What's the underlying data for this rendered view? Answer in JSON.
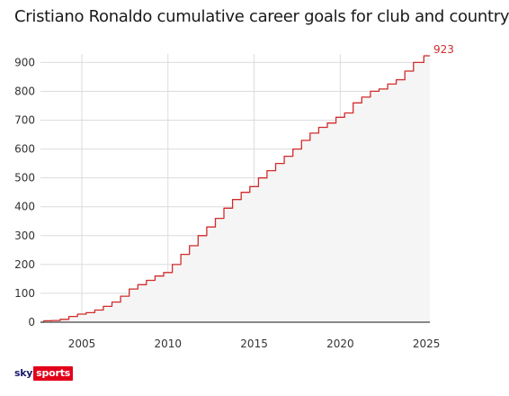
{
  "chart_data": {
    "type": "area",
    "title": "Cristiano Ronaldo cumulative career goals for club and country",
    "xlabel": "",
    "ylabel": "",
    "xlim": [
      2002.6,
      2025.2
    ],
    "ylim": [
      0,
      923
    ],
    "x_ticks": [
      2005,
      2010,
      2015,
      2020,
      2025
    ],
    "y_ticks": [
      0,
      100,
      200,
      300,
      400,
      500,
      600,
      700,
      800,
      900
    ],
    "grid": true,
    "end_label": "923",
    "line_color": "#d12b2b",
    "fill_color": "#f5f5f5",
    "grid_color": "#dcdcdc",
    "series": [
      {
        "x": [
          2002.6,
          2003.0,
          2003.5,
          2004.0,
          2004.5,
          2005.0,
          2005.5,
          2006.0,
          2006.5,
          2007.0,
          2007.5,
          2008.0,
          2008.5,
          2009.0,
          2009.5,
          2010.0,
          2010.5,
          2011.0,
          2011.5,
          2012.0,
          2012.5,
          2013.0,
          2013.5,
          2014.0,
          2014.5,
          2015.0,
          2015.5,
          2016.0,
          2016.5,
          2017.0,
          2017.5,
          2018.0,
          2018.5,
          2019.0,
          2019.5,
          2020.0,
          2020.5,
          2021.0,
          2021.5,
          2022.0,
          2022.5,
          2023.0,
          2023.5,
          2024.0,
          2024.5,
          2025.2
        ],
        "y": [
          0,
          5,
          6,
          10,
          20,
          28,
          33,
          42,
          55,
          70,
          90,
          115,
          130,
          145,
          160,
          172,
          200,
          235,
          265,
          300,
          330,
          360,
          395,
          425,
          450,
          470,
          500,
          525,
          550,
          575,
          600,
          630,
          655,
          675,
          690,
          710,
          725,
          760,
          780,
          800,
          808,
          825,
          840,
          870,
          900,
          923
        ]
      }
    ]
  },
  "branding": {
    "logo_sky": "sky",
    "logo_sports": "sports"
  }
}
